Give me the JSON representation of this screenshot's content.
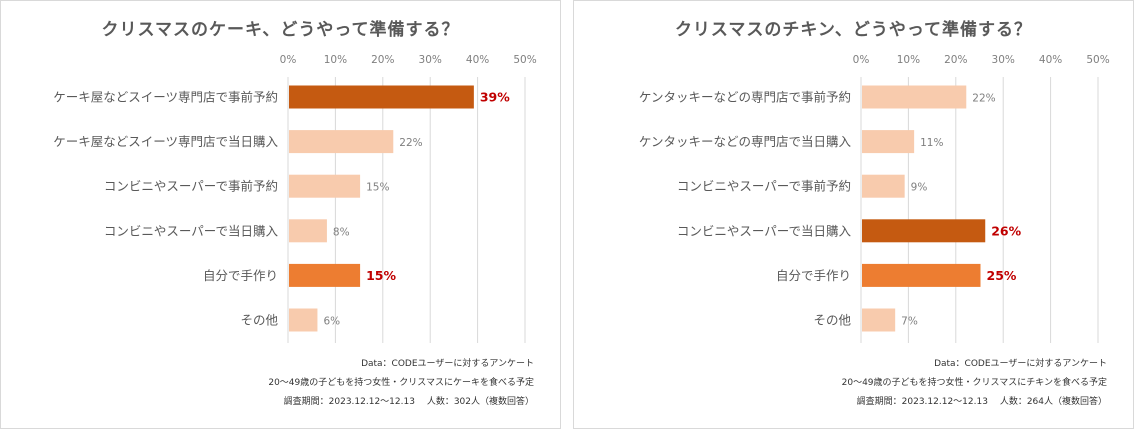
{
  "chart_data": [
    {
      "type": "bar",
      "orientation": "horizontal",
      "title": "クリスマスのケーキ、どうやって準備する？",
      "xlim": [
        0,
        50
      ],
      "ticks": [
        "0%",
        "10%",
        "20%",
        "30%",
        "40%",
        "50%"
      ],
      "tick_values": [
        0,
        10,
        20,
        30,
        40,
        50
      ],
      "categories": [
        "ケーキ屋などスイーツ専門店で事前予約",
        "ケーキ屋などスイーツ専門店で当日購入",
        "コンビニやスーパーで事前予約",
        "コンビニやスーパーで当日購入",
        "自分で手作り",
        "その他"
      ],
      "values": [
        39,
        22,
        15,
        8,
        15,
        6
      ],
      "labels": [
        "39%",
        "22%",
        "15%",
        "8%",
        "15%",
        "6%"
      ],
      "highlight": [
        "top",
        "none",
        "none",
        "none",
        "second",
        "none"
      ],
      "notes": [
        "Data：CODEユーザーに対するアンケート",
        "20～49歳の子どもを持つ女性・クリスマスにケーキを食べる予定",
        "調査期間：2023.12.12～12.13　 人数：302人（複数回答）"
      ]
    },
    {
      "type": "bar",
      "orientation": "horizontal",
      "title": "クリスマスのチキン、どうやって準備する？",
      "xlim": [
        0,
        50
      ],
      "ticks": [
        "0%",
        "10%",
        "20%",
        "30%",
        "40%",
        "50%"
      ],
      "tick_values": [
        0,
        10,
        20,
        30,
        40,
        50
      ],
      "categories": [
        "ケンタッキーなどの専門店で事前予約",
        "ケンタッキーなどの専門店で当日購入",
        "コンビニやスーパーで事前予約",
        "コンビニやスーパーで当日購入",
        "自分で手作り",
        "その他"
      ],
      "values": [
        22,
        11,
        9,
        26,
        25,
        7
      ],
      "labels": [
        "22%",
        "11%",
        "9%",
        "26%",
        "25%",
        "7%"
      ],
      "highlight": [
        "none",
        "none",
        "none",
        "top",
        "second",
        "none"
      ],
      "notes": [
        "Data：CODEユーザーに対するアンケート",
        "20～49歳の子どもを持つ女性・クリスマスにチキンを食べる予定",
        "調査期間：2023.12.12～12.13　 人数：264人（複数回答）"
      ]
    }
  ],
  "colors": {
    "top": "#c55a11",
    "second": "#ed7d31",
    "none": "#f8cbad",
    "highlight_label": "#c00000",
    "normal_label": "#7f7f7f",
    "grid": "#d9d9d9",
    "axis_text": "#7f7f7f",
    "category_text": "#595959"
  }
}
